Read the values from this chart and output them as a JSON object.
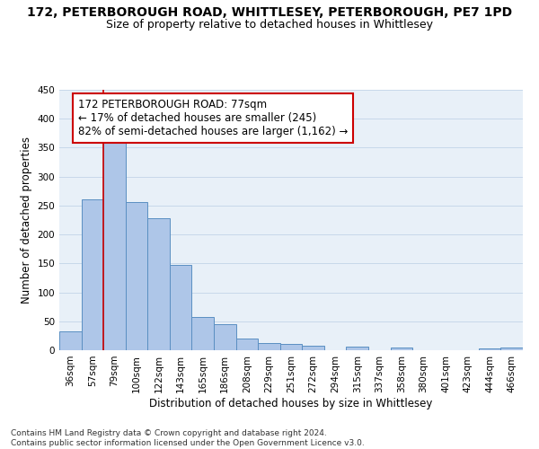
{
  "title": "172, PETERBOROUGH ROAD, WHITTLESEY, PETERBOROUGH, PE7 1PD",
  "subtitle": "Size of property relative to detached houses in Whittlesey",
  "xlabel": "Distribution of detached houses by size in Whittlesey",
  "ylabel": "Number of detached properties",
  "categories": [
    "36sqm",
    "57sqm",
    "79sqm",
    "100sqm",
    "122sqm",
    "143sqm",
    "165sqm",
    "186sqm",
    "208sqm",
    "229sqm",
    "251sqm",
    "272sqm",
    "294sqm",
    "315sqm",
    "337sqm",
    "358sqm",
    "380sqm",
    "401sqm",
    "423sqm",
    "444sqm",
    "466sqm"
  ],
  "values": [
    33,
    260,
    363,
    256,
    228,
    148,
    57,
    45,
    20,
    12,
    11,
    7,
    0,
    6,
    0,
    5,
    0,
    0,
    0,
    3,
    4
  ],
  "bar_color": "#aec6e8",
  "bar_edge_color": "#5a8fc2",
  "vline_x_index": 2,
  "vline_color": "#cc0000",
  "annotation_text": "172 PETERBOROUGH ROAD: 77sqm\n← 17% of detached houses are smaller (245)\n82% of semi-detached houses are larger (1,162) →",
  "annotation_box_color": "#ffffff",
  "annotation_box_edge_color": "#cc0000",
  "ylim": [
    0,
    450
  ],
  "yticks": [
    0,
    50,
    100,
    150,
    200,
    250,
    300,
    350,
    400,
    450
  ],
  "grid_color": "#c8d8ea",
  "background_color": "#e8f0f8",
  "footnote": "Contains HM Land Registry data © Crown copyright and database right 2024.\nContains public sector information licensed under the Open Government Licence v3.0.",
  "title_fontsize": 10,
  "subtitle_fontsize": 9,
  "axis_label_fontsize": 8.5,
  "tick_fontsize": 7.5,
  "annotation_fontsize": 8.5,
  "footnote_fontsize": 6.5
}
